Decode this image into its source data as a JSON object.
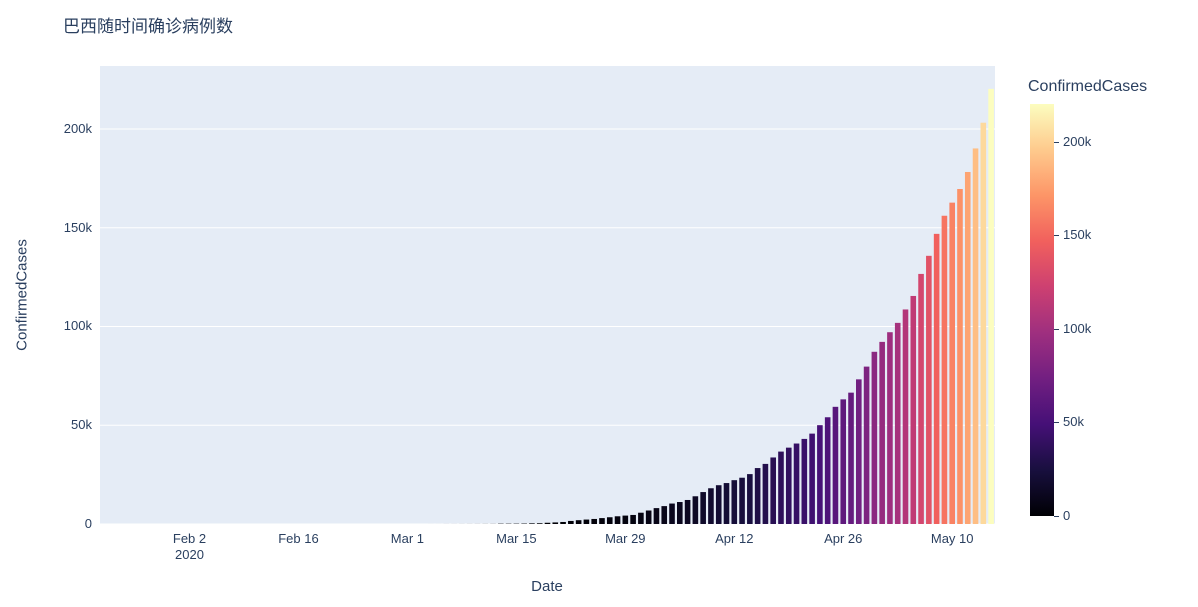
{
  "title": "巴西随时间确诊病例数",
  "xaxis": {
    "title": "Date",
    "ticks": [
      {
        "date": "2020-02-02",
        "label": "Feb 2",
        "sublabel": "2020"
      },
      {
        "date": "2020-02-16",
        "label": "Feb 16"
      },
      {
        "date": "2020-03-01",
        "label": "Mar 1"
      },
      {
        "date": "2020-03-15",
        "label": "Mar 15"
      },
      {
        "date": "2020-03-29",
        "label": "Mar 29"
      },
      {
        "date": "2020-04-12",
        "label": "Apr 12"
      },
      {
        "date": "2020-04-26",
        "label": "Apr 26"
      },
      {
        "date": "2020-05-10",
        "label": "May 10"
      }
    ]
  },
  "yaxis": {
    "title": "ConfirmedCases",
    "range": [
      0,
      231877
    ],
    "ticks": [
      {
        "value": 0,
        "label": "0"
      },
      {
        "value": 50000,
        "label": "50k"
      },
      {
        "value": 100000,
        "label": "100k"
      },
      {
        "value": 150000,
        "label": "150k"
      },
      {
        "value": 200000,
        "label": "200k"
      }
    ]
  },
  "colorbar": {
    "title": "ConfirmedCases",
    "cmin": 0,
    "cmax": 220291,
    "ticks": [
      {
        "value": 0,
        "label": "0"
      },
      {
        "value": 50000,
        "label": "50k"
      },
      {
        "value": 100000,
        "label": "100k"
      },
      {
        "value": 150000,
        "label": "150k"
      },
      {
        "value": 200000,
        "label": "200k"
      }
    ]
  },
  "colors": {
    "paper_bg": "#ffffff",
    "plot_bg": "#e5ecf6",
    "font": "#2a3f5f",
    "grid": "#ffffff",
    "colorscale_name": "Magma",
    "colorscale": [
      "#000004",
      "#180f3e",
      "#451077",
      "#721f81",
      "#9f2f7f",
      "#cd4071",
      "#f1605d",
      "#fd9567",
      "#feca8d",
      "#fcfdbf"
    ]
  },
  "chart_data": {
    "type": "bar",
    "title": "巴西随时间确诊病例数",
    "xlabel": "Date",
    "ylabel": "ConfirmedCases",
    "color_by": "ConfirmedCases",
    "yrange": [
      0,
      231877
    ],
    "legend": "colorbar-right",
    "grid": "horizontal-white",
    "x": [
      "2020-01-22",
      "2020-01-23",
      "2020-01-24",
      "2020-01-25",
      "2020-01-26",
      "2020-01-27",
      "2020-01-28",
      "2020-01-29",
      "2020-01-30",
      "2020-01-31",
      "2020-02-01",
      "2020-02-02",
      "2020-02-03",
      "2020-02-04",
      "2020-02-05",
      "2020-02-06",
      "2020-02-07",
      "2020-02-08",
      "2020-02-09",
      "2020-02-10",
      "2020-02-11",
      "2020-02-12",
      "2020-02-13",
      "2020-02-14",
      "2020-02-15",
      "2020-02-16",
      "2020-02-17",
      "2020-02-18",
      "2020-02-19",
      "2020-02-20",
      "2020-02-21",
      "2020-02-22",
      "2020-02-23",
      "2020-02-24",
      "2020-02-25",
      "2020-02-26",
      "2020-02-27",
      "2020-02-28",
      "2020-02-29",
      "2020-03-01",
      "2020-03-02",
      "2020-03-03",
      "2020-03-04",
      "2020-03-05",
      "2020-03-06",
      "2020-03-07",
      "2020-03-08",
      "2020-03-09",
      "2020-03-10",
      "2020-03-11",
      "2020-03-12",
      "2020-03-13",
      "2020-03-14",
      "2020-03-15",
      "2020-03-16",
      "2020-03-17",
      "2020-03-18",
      "2020-03-19",
      "2020-03-20",
      "2020-03-21",
      "2020-03-22",
      "2020-03-23",
      "2020-03-24",
      "2020-03-25",
      "2020-03-26",
      "2020-03-27",
      "2020-03-28",
      "2020-03-29",
      "2020-03-30",
      "2020-03-31",
      "2020-04-01",
      "2020-04-02",
      "2020-04-03",
      "2020-04-04",
      "2020-04-05",
      "2020-04-06",
      "2020-04-07",
      "2020-04-08",
      "2020-04-09",
      "2020-04-10",
      "2020-04-11",
      "2020-04-12",
      "2020-04-13",
      "2020-04-14",
      "2020-04-15",
      "2020-04-16",
      "2020-04-17",
      "2020-04-18",
      "2020-04-19",
      "2020-04-20",
      "2020-04-21",
      "2020-04-22",
      "2020-04-23",
      "2020-04-24",
      "2020-04-25",
      "2020-04-26",
      "2020-04-27",
      "2020-04-28",
      "2020-04-29",
      "2020-04-30",
      "2020-05-01",
      "2020-05-02",
      "2020-05-03",
      "2020-05-04",
      "2020-05-05",
      "2020-05-06",
      "2020-05-07",
      "2020-05-08",
      "2020-05-09",
      "2020-05-10",
      "2020-05-11",
      "2020-05-12",
      "2020-05-13",
      "2020-05-14",
      "2020-05-15"
    ],
    "y": [
      0,
      0,
      0,
      0,
      0,
      0,
      0,
      0,
      0,
      0,
      0,
      0,
      0,
      0,
      0,
      0,
      0,
      0,
      0,
      0,
      0,
      0,
      0,
      0,
      0,
      0,
      0,
      0,
      0,
      0,
      0,
      0,
      0,
      0,
      0,
      1,
      1,
      1,
      2,
      2,
      2,
      2,
      4,
      4,
      13,
      13,
      20,
      25,
      31,
      38,
      52,
      151,
      151,
      162,
      200,
      321,
      372,
      621,
      793,
      1021,
      1546,
      1924,
      2247,
      2554,
      2985,
      3417,
      3904,
      4256,
      4579,
      5717,
      6836,
      8044,
      9056,
      10360,
      11130,
      12161,
      14034,
      16170,
      18092,
      19638,
      20727,
      22192,
      23430,
      25262,
      28320,
      30425,
      33682,
      36658,
      38654,
      40743,
      43079,
      45757,
      50036,
      54043,
      59324,
      63100,
      66501,
      73235,
      79685,
      87187,
      92202,
      97100,
      101826,
      108620,
      115455,
      126611,
      135773,
      146894,
      156061,
      162699,
      169594,
      178214,
      190137,
      203165,
      220291
    ]
  }
}
